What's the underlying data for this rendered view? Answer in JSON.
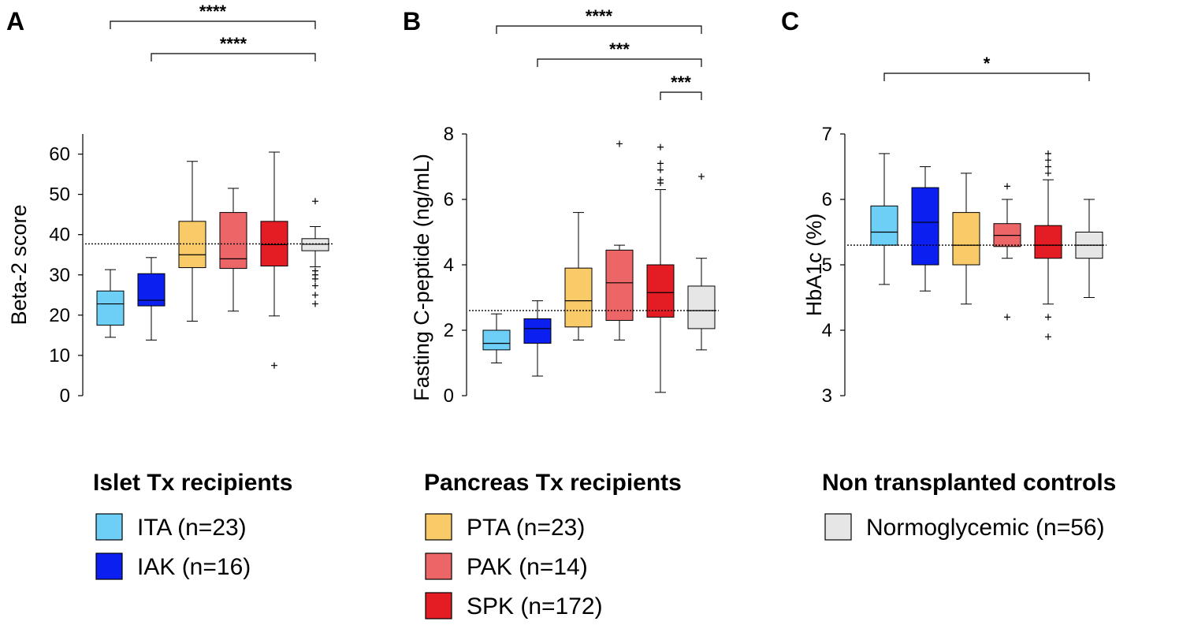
{
  "chart_data": [
    {
      "type": "box",
      "panel": "A",
      "ylabel": "Beta-2 score",
      "ylim": [
        0,
        65
      ],
      "yticks": [
        0,
        10,
        20,
        30,
        40,
        50,
        60
      ],
      "reference_line": 37.7,
      "groups": [
        {
          "name": "ITA",
          "color": "#6dcff6",
          "whisker_low": 14.5,
          "q1": 17.5,
          "median": 22.8,
          "q3": 26.0,
          "whisker_high": 31.3,
          "outliers": []
        },
        {
          "name": "IAK",
          "color": "#0a1ff0",
          "whisker_low": 13.8,
          "q1": 22.3,
          "median": 23.7,
          "q3": 30.3,
          "whisker_high": 34.3,
          "outliers": []
        },
        {
          "name": "PTA",
          "color": "#f8ca68",
          "whisker_low": 18.5,
          "q1": 31.8,
          "median": 35.0,
          "q3": 43.3,
          "whisker_high": 58.2,
          "outliers": []
        },
        {
          "name": "PAK",
          "color": "#ec6567",
          "whisker_low": 21.0,
          "q1": 31.6,
          "median": 34.0,
          "q3": 45.5,
          "whisker_high": 51.5,
          "outliers": []
        },
        {
          "name": "SPK",
          "color": "#e31d23",
          "whisker_low": 19.8,
          "q1": 32.2,
          "median": 37.5,
          "q3": 43.3,
          "whisker_high": 60.5,
          "outliers": [
            7.5
          ]
        },
        {
          "name": "Normoglycemic",
          "color": "#e6e6e6",
          "whisker_low": 32.0,
          "q1": 36.0,
          "median": 37.6,
          "q3": 39.0,
          "whisker_high": 42.0,
          "outliers": [
            22.8,
            25.0,
            27.3,
            29.0,
            30.0,
            31.0,
            48.3
          ]
        }
      ],
      "significance": [
        {
          "from": "ITA",
          "to": "Normoglycemic",
          "label": "****"
        },
        {
          "from": "IAK",
          "to": "Normoglycemic",
          "label": "****"
        }
      ]
    },
    {
      "type": "box",
      "panel": "B",
      "ylabel": "Fasting C-peptide (ng/mL)",
      "ylim": [
        0,
        8
      ],
      "yticks": [
        0,
        2,
        4,
        6,
        8
      ],
      "reference_line": 2.6,
      "groups": [
        {
          "name": "ITA",
          "color": "#6dcff6",
          "whisker_low": 1.0,
          "q1": 1.4,
          "median": 1.6,
          "q3": 2.0,
          "whisker_high": 2.5,
          "outliers": []
        },
        {
          "name": "IAK",
          "color": "#0a1ff0",
          "whisker_low": 0.6,
          "q1": 1.6,
          "median": 2.05,
          "q3": 2.35,
          "whisker_high": 2.9,
          "outliers": []
        },
        {
          "name": "PTA",
          "color": "#f8ca68",
          "whisker_low": 1.7,
          "q1": 2.1,
          "median": 2.9,
          "q3": 3.9,
          "whisker_high": 5.6,
          "outliers": []
        },
        {
          "name": "PAK",
          "color": "#ec6567",
          "whisker_low": 1.7,
          "q1": 2.3,
          "median": 3.45,
          "q3": 4.45,
          "whisker_high": 4.6,
          "outliers": [
            7.7
          ]
        },
        {
          "name": "SPK",
          "color": "#e31d23",
          "whisker_low": 0.1,
          "q1": 2.4,
          "median": 3.15,
          "q3": 4.0,
          "whisker_high": 6.3,
          "outliers": [
            6.5,
            6.6,
            6.9,
            7.1,
            7.6
          ]
        },
        {
          "name": "Normoglycemic",
          "color": "#e6e6e6",
          "whisker_low": 1.4,
          "q1": 2.05,
          "median": 2.6,
          "q3": 3.35,
          "whisker_high": 4.2,
          "outliers": [
            6.7
          ]
        }
      ],
      "significance": [
        {
          "from": "ITA",
          "to": "Normoglycemic",
          "label": "****"
        },
        {
          "from": "IAK",
          "to": "Normoglycemic",
          "label": "***"
        },
        {
          "from": "SPK",
          "to": "Normoglycemic",
          "label": "***"
        }
      ]
    },
    {
      "type": "box",
      "panel": "C",
      "ylabel": "HbA1c (%)",
      "ylim": [
        3,
        7
      ],
      "yticks": [
        3,
        4,
        5,
        6,
        7
      ],
      "reference_line": 5.3,
      "groups": [
        {
          "name": "ITA",
          "color": "#6dcff6",
          "whisker_low": 4.7,
          "q1": 5.3,
          "median": 5.5,
          "q3": 5.9,
          "whisker_high": 6.7,
          "outliers": []
        },
        {
          "name": "IAK",
          "color": "#0a1ff0",
          "whisker_low": 4.6,
          "q1": 5.0,
          "median": 5.65,
          "q3": 6.18,
          "whisker_high": 6.5,
          "outliers": []
        },
        {
          "name": "PTA",
          "color": "#f8ca68",
          "whisker_low": 4.4,
          "q1": 5.0,
          "median": 5.3,
          "q3": 5.8,
          "whisker_high": 6.4,
          "outliers": []
        },
        {
          "name": "PAK",
          "color": "#ec6567",
          "whisker_low": 5.1,
          "q1": 5.28,
          "median": 5.45,
          "q3": 5.63,
          "whisker_high": 6.0,
          "outliers": [
            4.2,
            6.2
          ]
        },
        {
          "name": "SPK",
          "color": "#e31d23",
          "whisker_low": 4.4,
          "q1": 5.1,
          "median": 5.3,
          "q3": 5.6,
          "whisker_high": 6.3,
          "outliers": [
            3.9,
            4.2,
            6.4,
            6.5,
            6.6,
            6.7
          ]
        },
        {
          "name": "Normoglycemic",
          "color": "#e6e6e6",
          "whisker_low": 4.5,
          "q1": 5.1,
          "median": 5.3,
          "q3": 5.5,
          "whisker_high": 6.0,
          "outliers": []
        }
      ],
      "significance": [
        {
          "from": "ITA",
          "to": "Normoglycemic",
          "label": "*"
        }
      ]
    }
  ],
  "legend": [
    {
      "title": "Islet Tx recipients",
      "items": [
        {
          "label": "ITA (n=23)",
          "color": "#6dcff6"
        },
        {
          "label": "IAK (n=16)",
          "color": "#0a1ff0"
        }
      ]
    },
    {
      "title": "Pancreas Tx recipients",
      "items": [
        {
          "label": "PTA (n=23)",
          "color": "#f8ca68"
        },
        {
          "label": "PAK (n=14)",
          "color": "#ec6567"
        },
        {
          "label": "SPK (n=172)",
          "color": "#e31d23"
        }
      ]
    },
    {
      "title": "Non transplanted controls",
      "items": [
        {
          "label": "Normoglycemic (n=56)",
          "color": "#e6e6e6"
        }
      ]
    }
  ]
}
